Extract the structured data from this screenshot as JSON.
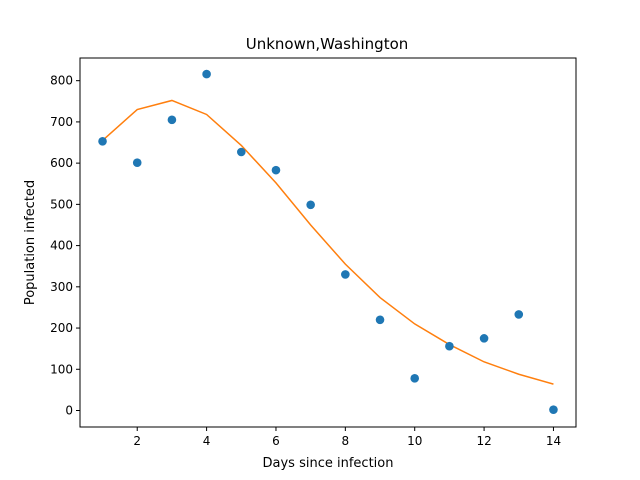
{
  "chart_data": {
    "type": "scatter",
    "title": "Unknown,Washington",
    "xlabel": "Days since infection",
    "ylabel": "Population infected",
    "xlim": [
      0.35,
      14.65
    ],
    "ylim": [
      -40,
      855
    ],
    "xticks": [
      2,
      4,
      6,
      8,
      10,
      12,
      14
    ],
    "yticks": [
      0,
      100,
      200,
      300,
      400,
      500,
      600,
      700,
      800
    ],
    "grid": false,
    "series": [
      {
        "kind": "scatter",
        "color": "#1f77b4",
        "x": [
          1,
          2,
          3,
          4,
          5,
          6,
          7,
          8,
          9,
          10,
          11,
          12,
          13,
          14
        ],
        "y": [
          653,
          601,
          705,
          816,
          627,
          583,
          499,
          330,
          220,
          78,
          156,
          175,
          233,
          2
        ]
      },
      {
        "kind": "line",
        "color": "#ff7f0e",
        "x": [
          1,
          2,
          3,
          4,
          5,
          6,
          7,
          8,
          9,
          10,
          11,
          12,
          13,
          14
        ],
        "y": [
          655,
          730,
          752,
          718,
          643,
          552,
          450,
          355,
          274,
          210,
          160,
          118,
          88,
          64
        ]
      }
    ]
  }
}
